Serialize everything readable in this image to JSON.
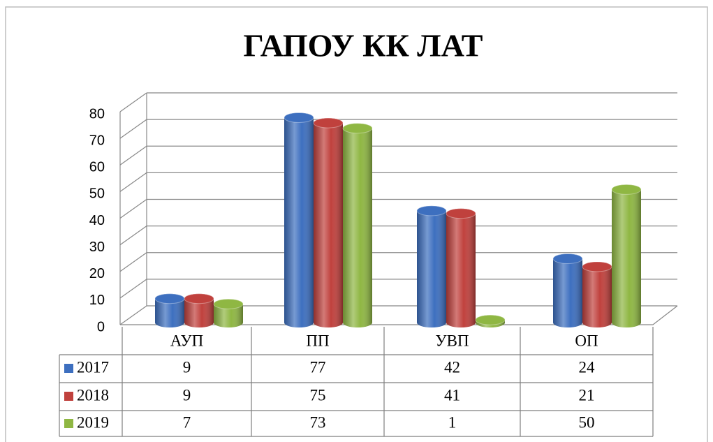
{
  "chart_data": {
    "type": "bar",
    "title": "ГАПОУ КК ЛАТ",
    "categories": [
      "АУП",
      "ПП",
      "УВП",
      "ОП"
    ],
    "series": [
      {
        "name": "2017",
        "color": "#3d6fbf",
        "values": [
          9,
          77,
          42,
          24
        ]
      },
      {
        "name": "2018",
        "color": "#c0413d",
        "values": [
          9,
          75,
          41,
          21
        ]
      },
      {
        "name": "2019",
        "color": "#8fb743",
        "values": [
          7,
          73,
          1,
          50
        ]
      }
    ],
    "ylim": [
      0,
      80
    ],
    "yticks": [
      0,
      10,
      20,
      30,
      40,
      50,
      60,
      70,
      80
    ],
    "grid": true,
    "data_table": true
  }
}
